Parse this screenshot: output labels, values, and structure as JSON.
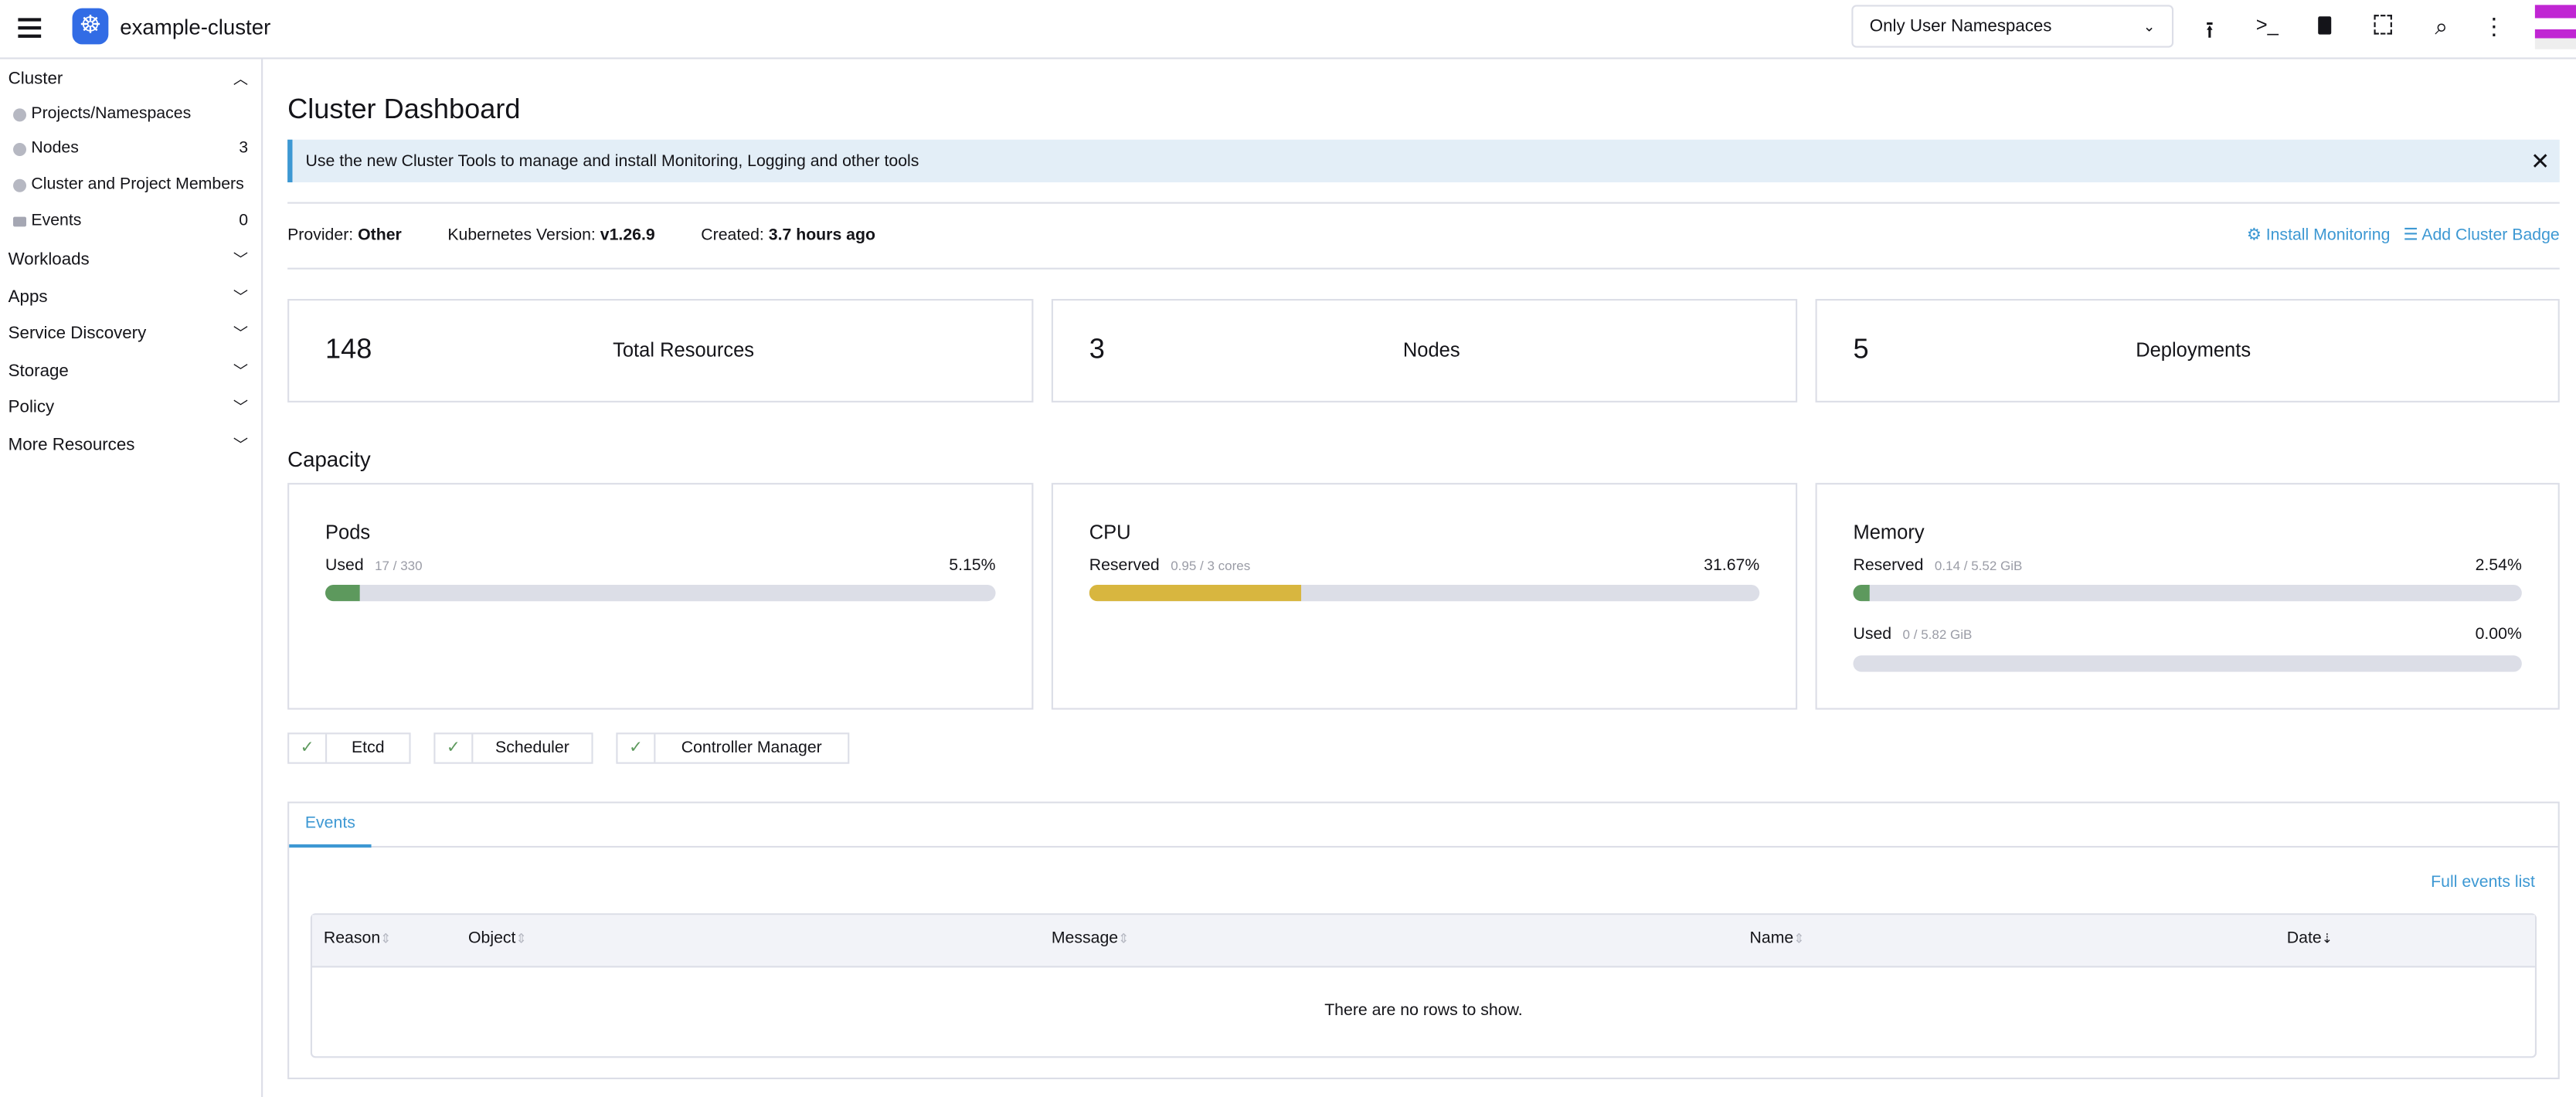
{
  "header": {
    "cluster_name": "example-cluster",
    "namespace_filter": "Only User Namespaces"
  },
  "sidebar": {
    "cluster_label": "Cluster",
    "cluster_items": [
      {
        "label": "Projects/Namespaces",
        "count": ""
      },
      {
        "label": "Nodes",
        "count": "3"
      },
      {
        "label": "Cluster and Project Members",
        "count": ""
      },
      {
        "label": "Events",
        "count": "0"
      }
    ],
    "groups": [
      "Workloads",
      "Apps",
      "Service Discovery",
      "Storage",
      "Policy",
      "More Resources"
    ]
  },
  "main": {
    "title": "Cluster Dashboard",
    "banner": "Use the new Cluster Tools to manage and install Monitoring, Logging and other tools",
    "provider_label": "Provider:",
    "provider": "Other",
    "k8s_label": "Kubernetes Version:",
    "k8s_version": "v1.26.9",
    "created_label": "Created:",
    "created": "3.7 hours ago",
    "install_monitoring": "Install Monitoring",
    "add_badge": "Add Cluster Badge",
    "counts": [
      {
        "value": "148",
        "label": "Total Resources"
      },
      {
        "value": "3",
        "label": "Nodes"
      },
      {
        "value": "5",
        "label": "Deployments"
      }
    ],
    "capacity_title": "Capacity",
    "pods": {
      "title": "Pods",
      "label": "Used",
      "detail": "17 / 330",
      "percent_text": "5.15%",
      "percent": 5.15,
      "color": "#5d995d"
    },
    "cpu": {
      "title": "CPU",
      "label": "Reserved",
      "detail": "0.95 / 3 cores",
      "percent_text": "31.67%",
      "percent": 31.67,
      "color": "#d8b63f"
    },
    "memory": {
      "title": "Memory",
      "reserved": {
        "label": "Reserved",
        "detail": "0.14 / 5.52 GiB",
        "percent_text": "2.54%",
        "percent": 2.54,
        "color": "#5d995d"
      },
      "used": {
        "label": "Used",
        "detail": "0 / 5.82 GiB",
        "percent_text": "0.00%",
        "percent": 0
      }
    },
    "components": [
      "Etcd",
      "Scheduler",
      "Controller Manager"
    ],
    "events": {
      "tab": "Events",
      "full_list": "Full events list",
      "columns": [
        "Reason",
        "Object",
        "Message",
        "Name",
        "Date"
      ],
      "empty": "There are no rows to show."
    }
  }
}
